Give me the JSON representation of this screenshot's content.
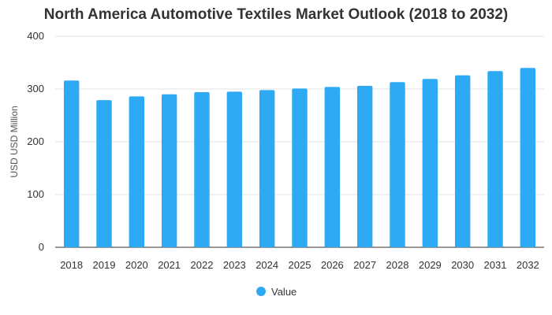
{
  "chart_data": {
    "type": "bar",
    "title": "North America Automotive Textiles Market Outlook (2018 to 2032)",
    "xlabel": "",
    "ylabel": "USD USD Million",
    "ylim": [
      0,
      400
    ],
    "yticks": [
      0,
      100,
      200,
      300,
      400
    ],
    "grid": true,
    "legend_position": "bottom",
    "bar_color": "#2eaaf5",
    "categories": [
      "2018",
      "2019",
      "2020",
      "2021",
      "2022",
      "2023",
      "2024",
      "2025",
      "2026",
      "2027",
      "2028",
      "2029",
      "2030",
      "2031",
      "2032"
    ],
    "series": [
      {
        "name": "Value",
        "values": [
          316,
          279,
          286,
          290,
          294,
          295,
          298,
          301,
          304,
          306,
          313,
          319,
          326,
          334,
          340
        ]
      }
    ]
  }
}
